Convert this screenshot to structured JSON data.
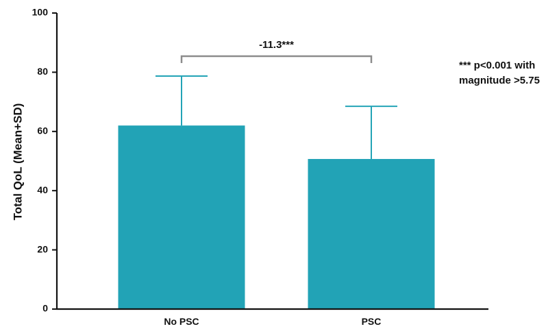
{
  "chart_data": {
    "type": "bar",
    "categories": [
      "No PSC",
      "PSC"
    ],
    "values": [
      62,
      50.7
    ],
    "error_plus_sd": [
      16.7,
      17.8
    ],
    "ylabel": "Total QoL (Mean+SD)",
    "xlabel": "",
    "ylim": [
      0,
      100
    ],
    "yticks": [
      "0",
      "20",
      "40",
      "60",
      "80",
      "100"
    ],
    "bar_color": "#22a3b6",
    "grid": false,
    "comparison": {
      "between": [
        "No PSC",
        "PSC"
      ],
      "label": "-11.3***"
    },
    "footnote_lines": [
      "*** p<0.001 with",
      "magnitude >5.75"
    ]
  }
}
